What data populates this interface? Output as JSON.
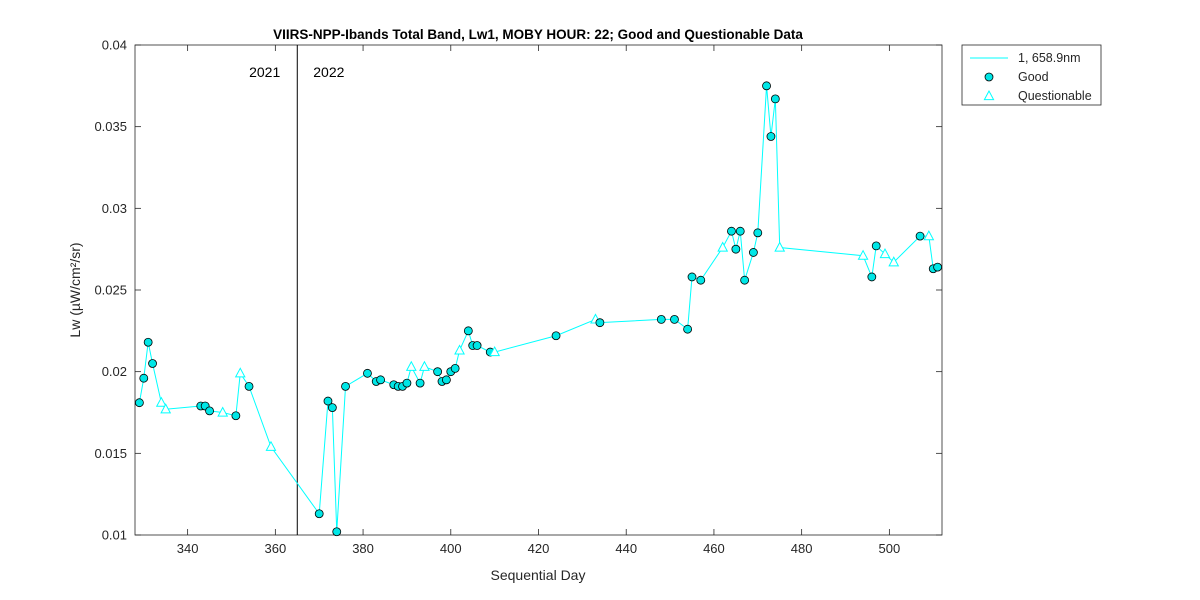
{
  "chart_data": {
    "type": "scatter",
    "title": "VIIRS-NPP-Ibands Total Band,  Lw1, MOBY HOUR: 22;  Good and Questionable Data",
    "xlabel": "Sequential Day",
    "ylabel": "Lw (µW/cm²/sr)",
    "xlim": [
      328,
      512
    ],
    "ylim": [
      0.01,
      0.04
    ],
    "x_ticks": [
      340,
      360,
      380,
      400,
      420,
      440,
      460,
      480,
      500
    ],
    "y_ticks": [
      0.01,
      0.015,
      0.02,
      0.025,
      0.03,
      0.035,
      0.04
    ],
    "y_tick_labels": [
      "0.01",
      "0.015",
      "0.02",
      "0.025",
      "0.03",
      "0.035",
      "0.04"
    ],
    "year_divider": {
      "x": 365,
      "left_label": "2021",
      "right_label": "2022"
    },
    "color": "#00ffff",
    "marker_fill": "#00e6e6",
    "legend_position": "outside-top-right",
    "legend": [
      {
        "label": "1, 658.9nm",
        "symbol": "line"
      },
      {
        "label": "Good",
        "symbol": "circle"
      },
      {
        "label": "Questionable",
        "symbol": "triangle"
      }
    ],
    "series": [
      {
        "name": "1, 658.9nm",
        "points": [
          {
            "x": 329,
            "y": 0.0181,
            "q": "good"
          },
          {
            "x": 330,
            "y": 0.0196,
            "q": "good"
          },
          {
            "x": 331,
            "y": 0.0218,
            "q": "good"
          },
          {
            "x": 332,
            "y": 0.0205,
            "q": "good"
          },
          {
            "x": 334,
            "y": 0.0181,
            "q": "questionable"
          },
          {
            "x": 335,
            "y": 0.0177,
            "q": "questionable"
          },
          {
            "x": 343,
            "y": 0.0179,
            "q": "good"
          },
          {
            "x": 344,
            "y": 0.0179,
            "q": "good"
          },
          {
            "x": 345,
            "y": 0.0176,
            "q": "good"
          },
          {
            "x": 348,
            "y": 0.0175,
            "q": "questionable"
          },
          {
            "x": 351,
            "y": 0.0173,
            "q": "good"
          },
          {
            "x": 352,
            "y": 0.0199,
            "q": "questionable"
          },
          {
            "x": 354,
            "y": 0.0191,
            "q": "good"
          },
          {
            "x": 359,
            "y": 0.0154,
            "q": "questionable"
          },
          {
            "x": 370,
            "y": 0.0113,
            "q": "good"
          },
          {
            "x": 372,
            "y": 0.0182,
            "q": "good"
          },
          {
            "x": 373,
            "y": 0.0178,
            "q": "good"
          },
          {
            "x": 374,
            "y": 0.0102,
            "q": "good"
          },
          {
            "x": 376,
            "y": 0.0191,
            "q": "good"
          },
          {
            "x": 381,
            "y": 0.0199,
            "q": "good"
          },
          {
            "x": 383,
            "y": 0.0194,
            "q": "good"
          },
          {
            "x": 384,
            "y": 0.0195,
            "q": "good"
          },
          {
            "x": 387,
            "y": 0.0192,
            "q": "good"
          },
          {
            "x": 388,
            "y": 0.0191,
            "q": "good"
          },
          {
            "x": 389,
            "y": 0.0191,
            "q": "good"
          },
          {
            "x": 390,
            "y": 0.0193,
            "q": "good"
          },
          {
            "x": 391,
            "y": 0.0203,
            "q": "questionable"
          },
          {
            "x": 393,
            "y": 0.0193,
            "q": "good"
          },
          {
            "x": 394,
            "y": 0.0203,
            "q": "questionable"
          },
          {
            "x": 397,
            "y": 0.02,
            "q": "good"
          },
          {
            "x": 398,
            "y": 0.0194,
            "q": "good"
          },
          {
            "x": 399,
            "y": 0.0195,
            "q": "good"
          },
          {
            "x": 400,
            "y": 0.02,
            "q": "good"
          },
          {
            "x": 401,
            "y": 0.0202,
            "q": "good"
          },
          {
            "x": 402,
            "y": 0.0213,
            "q": "questionable"
          },
          {
            "x": 404,
            "y": 0.0225,
            "q": "good"
          },
          {
            "x": 405,
            "y": 0.0216,
            "q": "good"
          },
          {
            "x": 406,
            "y": 0.0216,
            "q": "good"
          },
          {
            "x": 409,
            "y": 0.0212,
            "q": "good"
          },
          {
            "x": 410,
            "y": 0.0212,
            "q": "questionable"
          },
          {
            "x": 424,
            "y": 0.0222,
            "q": "good"
          },
          {
            "x": 433,
            "y": 0.0232,
            "q": "questionable"
          },
          {
            "x": 434,
            "y": 0.023,
            "q": "good"
          },
          {
            "x": 448,
            "y": 0.0232,
            "q": "good"
          },
          {
            "x": 451,
            "y": 0.0232,
            "q": "good"
          },
          {
            "x": 454,
            "y": 0.0226,
            "q": "good"
          },
          {
            "x": 455,
            "y": 0.0258,
            "q": "good"
          },
          {
            "x": 457,
            "y": 0.0256,
            "q": "good"
          },
          {
            "x": 462,
            "y": 0.0276,
            "q": "questionable"
          },
          {
            "x": 464,
            "y": 0.0286,
            "q": "good"
          },
          {
            "x": 465,
            "y": 0.0275,
            "q": "good"
          },
          {
            "x": 466,
            "y": 0.0286,
            "q": "good"
          },
          {
            "x": 467,
            "y": 0.0256,
            "q": "good"
          },
          {
            "x": 469,
            "y": 0.0273,
            "q": "good"
          },
          {
            "x": 470,
            "y": 0.0285,
            "q": "good"
          },
          {
            "x": 472,
            "y": 0.0375,
            "q": "good"
          },
          {
            "x": 473,
            "y": 0.0344,
            "q": "good"
          },
          {
            "x": 474,
            "y": 0.0367,
            "q": "good"
          },
          {
            "x": 475,
            "y": 0.0276,
            "q": "questionable"
          },
          {
            "x": 494,
            "y": 0.0271,
            "q": "questionable"
          },
          {
            "x": 496,
            "y": 0.0258,
            "q": "good"
          },
          {
            "x": 497,
            "y": 0.0277,
            "q": "good"
          },
          {
            "x": 499,
            "y": 0.0272,
            "q": "questionable"
          },
          {
            "x": 501,
            "y": 0.0267,
            "q": "questionable"
          },
          {
            "x": 507,
            "y": 0.0283,
            "q": "good"
          },
          {
            "x": 509,
            "y": 0.0283,
            "q": "questionable"
          },
          {
            "x": 510,
            "y": 0.0263,
            "q": "good"
          },
          {
            "x": 511,
            "y": 0.0264,
            "q": "good"
          }
        ]
      }
    ]
  }
}
